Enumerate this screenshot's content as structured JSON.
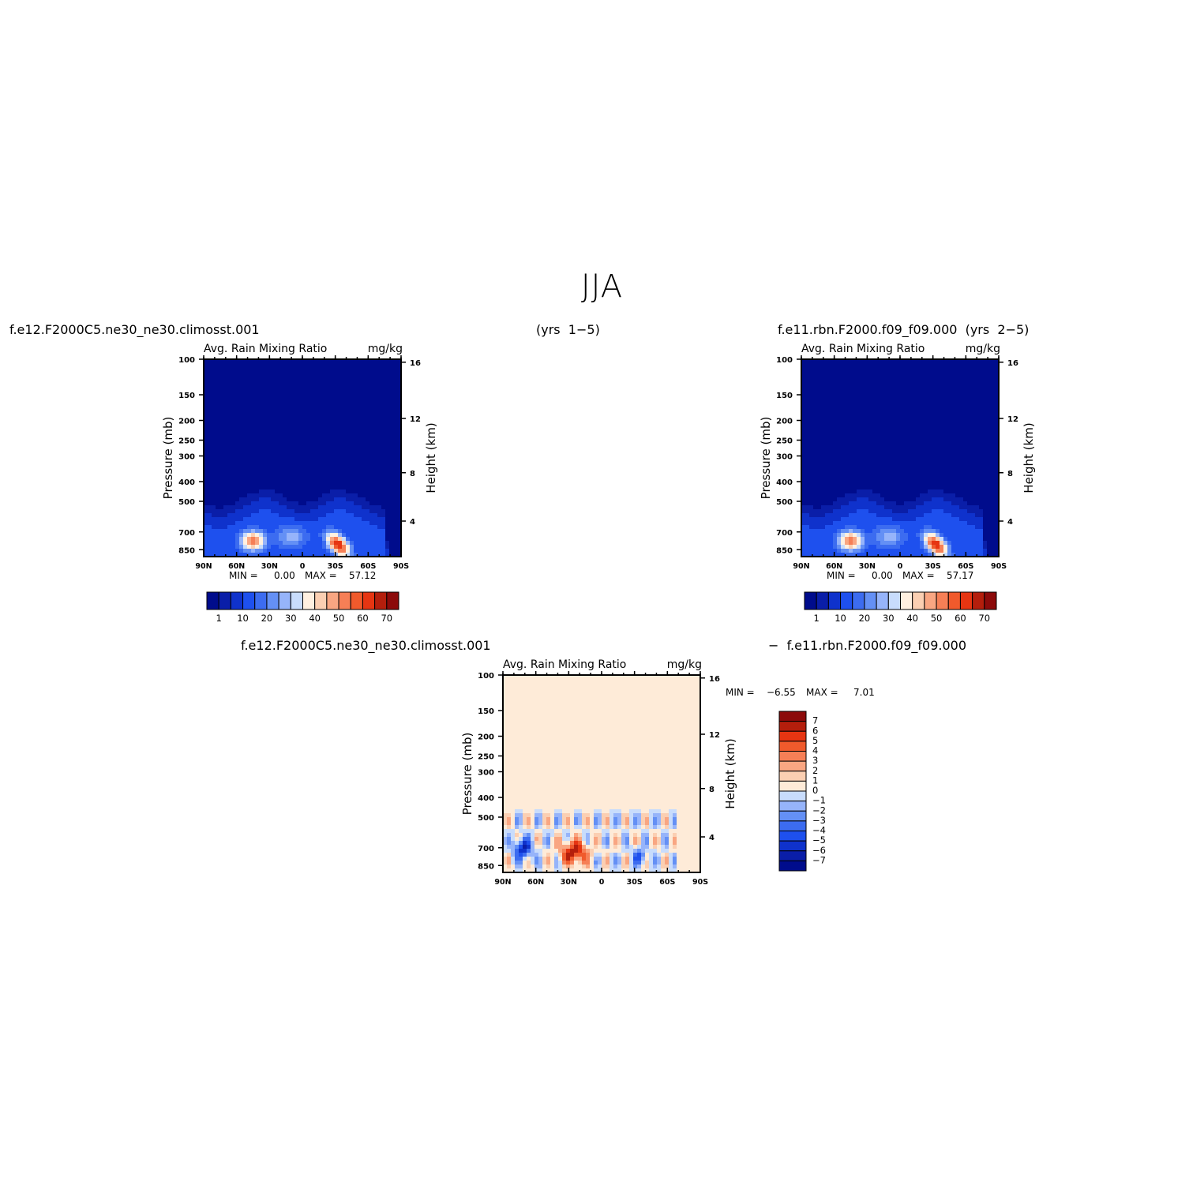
{
  "title": "JJA",
  "captions": {
    "top_left_case": "f.e12.F2000C5.ne30_ne30.climosst.001",
    "top_years": "(yrs  1−5)",
    "top_right_case": "f.e11.rbn.F2000.f09_f09.000  (yrs  2−5)",
    "bottom_case_a": "f.e12.F2000C5.ne30_ne30.climosst.001",
    "bottom_case_b": "−  f.e11.rbn.F2000.f09_f09.000"
  },
  "colors": {
    "abs_scale": [
      "#000c8c",
      "#0a1ea8",
      "#0f32cc",
      "#1e50ee",
      "#3c6cf0",
      "#6490f5",
      "#96b4fa",
      "#c8dcfc",
      "#fff0e0",
      "#fbcfb2",
      "#f9a682",
      "#f67f56",
      "#f05a2c",
      "#e63512",
      "#b41e0c",
      "#8c0a0a"
    ],
    "diff_scale": [
      "#000c8c",
      "#0a1ea8",
      "#0f32cc",
      "#1e50ee",
      "#3c6cf0",
      "#6490f5",
      "#96b4fa",
      "#c8dcfc",
      "#feebd8",
      "#fbcfb2",
      "#f9a682",
      "#f67f56",
      "#f05a2c",
      "#e63512",
      "#b41e0c",
      "#8c0a0a"
    ]
  },
  "chart_data": [
    {
      "type": "heatmap",
      "title": "Avg.  Rain  Mixing  Ratio",
      "units": "mg/kg",
      "xlabel": "",
      "ylabel": "Pressure  (mb)",
      "ylabel_right": "Height  (km)",
      "x_ticks": [
        "90N",
        "60N",
        "30N",
        "0",
        "30S",
        "60S",
        "90S"
      ],
      "y_ticks": [
        "100",
        "150",
        "200",
        "250",
        "300",
        "400",
        "500",
        "700",
        "850"
      ],
      "y_ticks_right": [
        "16",
        "12",
        "8",
        "4"
      ],
      "stats": {
        "min_label": "MIN  =",
        "min": "0.00",
        "max_label": "MAX  =",
        "max": "57.12"
      },
      "colorbar_labels": [
        "1",
        "10",
        "20",
        "30",
        "40",
        "50",
        "60",
        "70"
      ],
      "maxima": [
        {
          "lat": 45,
          "pressure": 720,
          "value": 45
        },
        {
          "lat": -30,
          "pressure": 800,
          "value": 57.12
        }
      ]
    },
    {
      "type": "heatmap",
      "title": "Avg.  Rain  Mixing  Ratio",
      "units": "mg/kg",
      "xlabel": "",
      "ylabel": "Pressure  (mb)",
      "ylabel_right": "Height  (km)",
      "x_ticks": [
        "90N",
        "60N",
        "30N",
        "0",
        "30S",
        "60S",
        "90S"
      ],
      "y_ticks": [
        "100",
        "150",
        "200",
        "250",
        "300",
        "400",
        "500",
        "700",
        "850"
      ],
      "y_ticks_right": [
        "16",
        "12",
        "8",
        "4"
      ],
      "stats": {
        "min_label": "MIN  =",
        "min": "0.00",
        "max_label": "MAX  =",
        "max": "57.17"
      },
      "colorbar_labels": [
        "1",
        "10",
        "20",
        "30",
        "40",
        "50",
        "60",
        "70"
      ],
      "maxima": [
        {
          "lat": 45,
          "pressure": 720,
          "value": 45
        },
        {
          "lat": -30,
          "pressure": 800,
          "value": 57.17
        }
      ]
    },
    {
      "type": "heatmap",
      "title": "Avg.  Rain  Mixing  Ratio",
      "units": "mg/kg",
      "xlabel": "",
      "ylabel": "Pressure  (mb)",
      "ylabel_right": "Height  (km)",
      "x_ticks": [
        "90N",
        "60N",
        "30N",
        "0",
        "30S",
        "60S",
        "90S"
      ],
      "y_ticks": [
        "100",
        "150",
        "200",
        "250",
        "300",
        "400",
        "500",
        "700",
        "850"
      ],
      "y_ticks_right": [
        "16",
        "12",
        "8",
        "4"
      ],
      "stats": {
        "min_label": "MIN  =",
        "min": "−6.55",
        "max_label": "MAX  =",
        "max": "7.01"
      },
      "colorbar_labels": [
        "7",
        "6",
        "5",
        "4",
        "3",
        "2",
        "1",
        "0",
        "−1",
        "−2",
        "−3",
        "−4",
        "−5",
        "−6",
        "−7"
      ],
      "maxima": [
        {
          "lat": 25,
          "pressure": 720,
          "value": 7.01
        },
        {
          "lat": 70,
          "pressure": 700,
          "value": -6.55
        }
      ]
    }
  ]
}
